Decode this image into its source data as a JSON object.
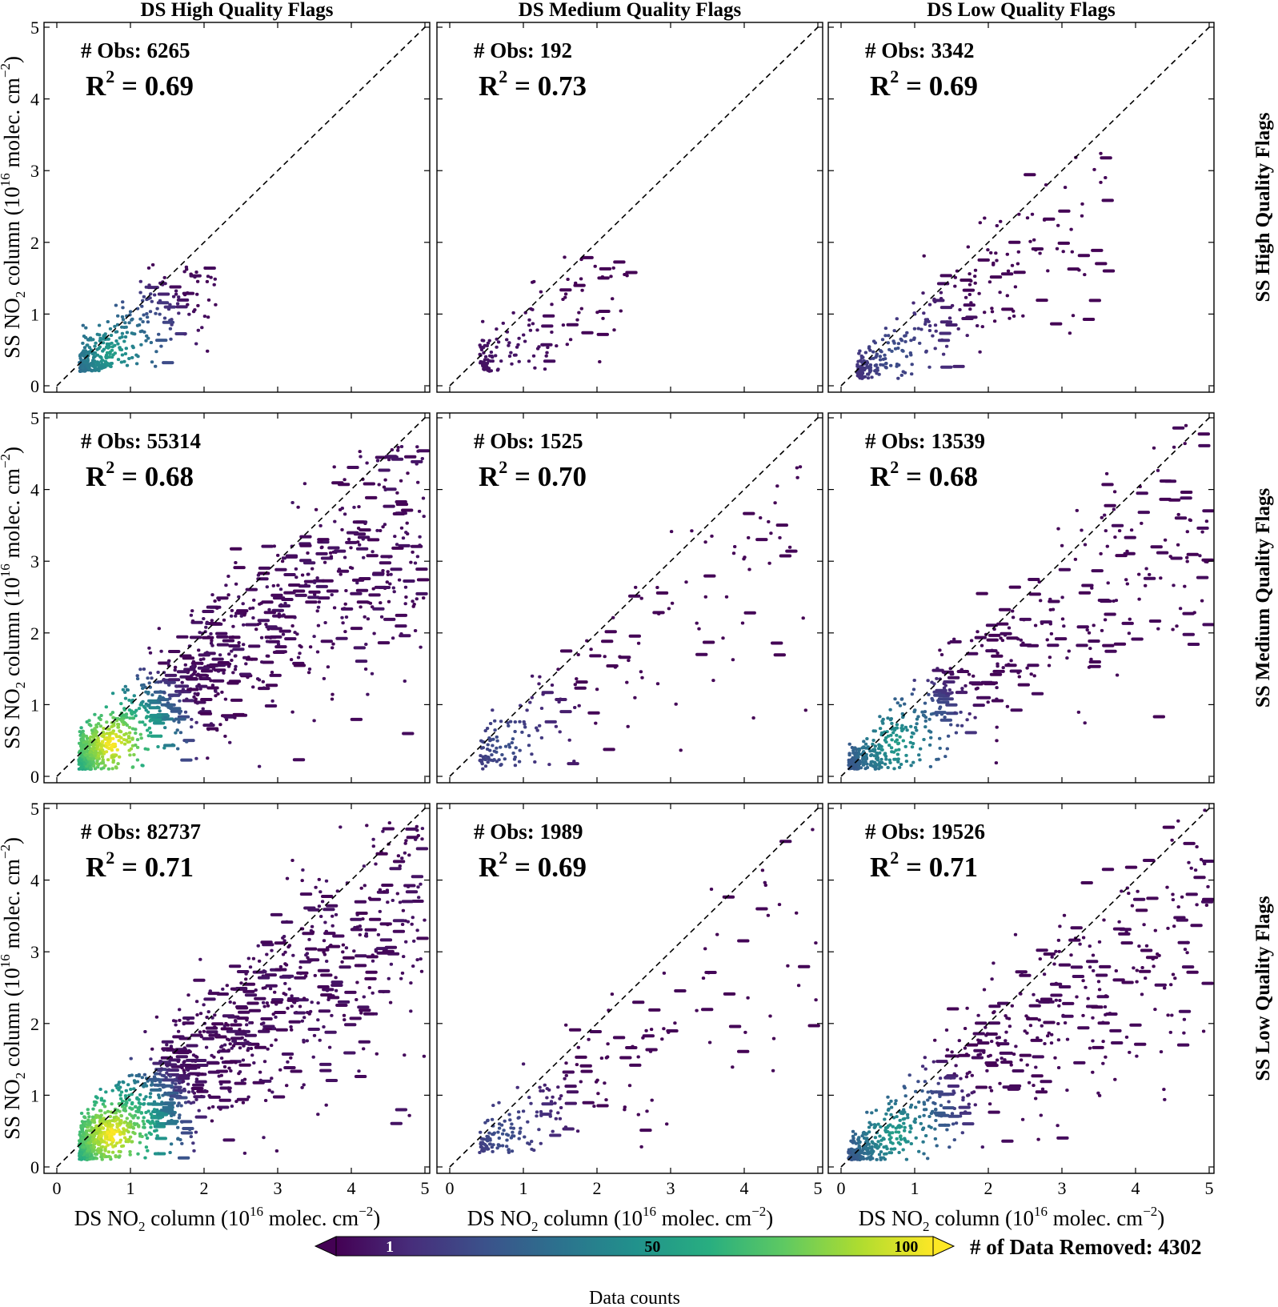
{
  "figure": {
    "col_titles": [
      "DS High Quality Flags",
      "DS Medium Quality Flags",
      "DS Low Quality Flags"
    ],
    "row_titles": [
      "SS High Quality Flags",
      "SS Medium Quality Flags",
      "SS Low Quality Flags"
    ],
    "xlabel": {
      "main": "DS NO",
      "sub": "2",
      "mid": " column (10",
      "sup": "16",
      "unit": " molec. cm",
      "unit_sup": "−2",
      "end": ")"
    },
    "ylabel": {
      "main": "SS NO",
      "sub": "2",
      "mid": " column (10",
      "sup": "16",
      "unit": " molec. cm",
      "unit_sup": "−2",
      "end": ")"
    },
    "obs_prefix": "# Obs: ",
    "r2_prefix": "R",
    "r2_sup": "2",
    "r2_eq": " = ",
    "colorbar": {
      "label": "Data counts",
      "ticks": [
        1,
        50,
        100
      ],
      "cmap": "viridis",
      "extend": "both"
    },
    "removed_label": "# of Data Removed:",
    "removed_value": "4302",
    "colors": {
      "viridis_low": "#440154",
      "viridis_mid": "#21918c",
      "viridis_high": "#fde725",
      "dashed_line": "#000000"
    }
  },
  "chart_data": [
    {
      "type": "heatmap",
      "row": "SS High Quality Flags",
      "col": "DS High Quality Flags",
      "obs": 6265,
      "r2": "0.69",
      "xlim": [
        0,
        5
      ],
      "ylim": [
        0,
        5
      ],
      "xticks": [
        0,
        1,
        2,
        3,
        4,
        5
      ],
      "yticks": [
        0,
        1,
        2,
        3,
        4,
        5
      ],
      "ref_line": "1:1",
      "spread": [
        0.3,
        2.1,
        0.2,
        1.7
      ]
    },
    {
      "type": "heatmap",
      "row": "SS High Quality Flags",
      "col": "DS Medium Quality Flags",
      "obs": 192,
      "r2": "0.73",
      "xlim": [
        0,
        5
      ],
      "ylim": [
        0,
        5
      ],
      "xticks": [
        0,
        1,
        2,
        3,
        4,
        5
      ],
      "yticks": [
        0,
        1,
        2,
        3,
        4,
        5
      ],
      "ref_line": "1:1",
      "spread": [
        0.4,
        2.6,
        0.2,
        1.8
      ]
    },
    {
      "type": "heatmap",
      "row": "SS High Quality Flags",
      "col": "DS Low Quality Flags",
      "obs": 3342,
      "r2": "0.69",
      "xlim": [
        0,
        5
      ],
      "ylim": [
        0,
        5
      ],
      "xticks": [
        0,
        1,
        2,
        3,
        4,
        5
      ],
      "yticks": [
        0,
        1,
        2,
        3,
        4,
        5
      ],
      "ref_line": "1:1",
      "spread": [
        0.2,
        3.6,
        0.1,
        3.3
      ]
    },
    {
      "type": "heatmap",
      "row": "SS Medium Quality Flags",
      "col": "DS High Quality Flags",
      "obs": 55314,
      "r2": "0.68",
      "xlim": [
        0,
        5
      ],
      "ylim": [
        0,
        5
      ],
      "xticks": [
        0,
        1,
        2,
        3,
        4,
        5
      ],
      "yticks": [
        0,
        1,
        2,
        3,
        4,
        5
      ],
      "ref_line": "1:1",
      "spread": [
        0.3,
        5.0,
        0.1,
        4.6
      ]
    },
    {
      "type": "heatmap",
      "row": "SS Medium Quality Flags",
      "col": "DS Medium Quality Flags",
      "obs": 1525,
      "r2": "0.70",
      "xlim": [
        0,
        5
      ],
      "ylim": [
        0,
        5
      ],
      "xticks": [
        0,
        1,
        2,
        3,
        4,
        5
      ],
      "yticks": [
        0,
        1,
        2,
        3,
        4,
        5
      ],
      "ref_line": "1:1",
      "spread": [
        0.4,
        4.8,
        0.1,
        4.4
      ]
    },
    {
      "type": "heatmap",
      "row": "SS Medium Quality Flags",
      "col": "DS Low Quality Flags",
      "obs": 13539,
      "r2": "0.68",
      "xlim": [
        0,
        5
      ],
      "ylim": [
        0,
        5
      ],
      "xticks": [
        0,
        1,
        2,
        3,
        4,
        5
      ],
      "yticks": [
        0,
        1,
        2,
        3,
        4,
        5
      ],
      "ref_line": "1:1",
      "spread": [
        0.1,
        5.0,
        0.1,
        4.9
      ]
    },
    {
      "type": "heatmap",
      "row": "SS Low Quality Flags",
      "col": "DS High Quality Flags",
      "obs": 82737,
      "r2": "0.71",
      "xlim": [
        0,
        5
      ],
      "ylim": [
        0,
        5
      ],
      "xticks": [
        0,
        1,
        2,
        3,
        4,
        5
      ],
      "yticks": [
        0,
        1,
        2,
        3,
        4,
        5
      ],
      "ref_line": "1:1",
      "spread": [
        0.3,
        5.0,
        0.1,
        4.8
      ]
    },
    {
      "type": "heatmap",
      "row": "SS Low Quality Flags",
      "col": "DS Medium Quality Flags",
      "obs": 1989,
      "r2": "0.69",
      "xlim": [
        0,
        5
      ],
      "ylim": [
        0,
        5
      ],
      "xticks": [
        0,
        1,
        2,
        3,
        4,
        5
      ],
      "yticks": [
        0,
        1,
        2,
        3,
        4,
        5
      ],
      "ref_line": "1:1",
      "spread": [
        0.4,
        5.0,
        0.2,
        4.8
      ]
    },
    {
      "type": "heatmap",
      "row": "SS Low Quality Flags",
      "col": "DS Low Quality Flags",
      "obs": 19526,
      "r2": "0.71",
      "xlim": [
        0,
        5
      ],
      "ylim": [
        0,
        5
      ],
      "xticks": [
        0,
        1,
        2,
        3,
        4,
        5
      ],
      "yticks": [
        0,
        1,
        2,
        3,
        4,
        5
      ],
      "ref_line": "1:1",
      "spread": [
        0.1,
        5.0,
        0.1,
        5.0
      ]
    }
  ]
}
